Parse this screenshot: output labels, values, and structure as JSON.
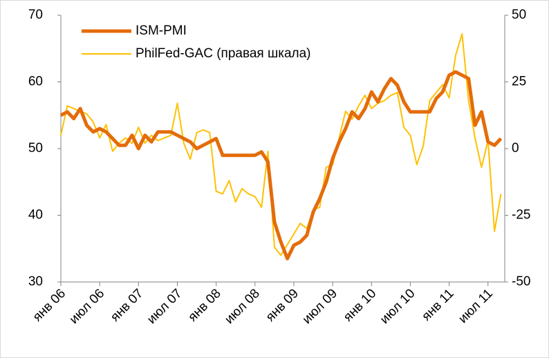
{
  "chart_data": {
    "type": "line",
    "categories": [
      "янв 06",
      null,
      null,
      null,
      null,
      null,
      "июл 06",
      null,
      null,
      null,
      null,
      null,
      "янв 07",
      null,
      null,
      null,
      null,
      null,
      "июл 07",
      null,
      null,
      null,
      null,
      null,
      "янв 08",
      null,
      null,
      null,
      null,
      null,
      "июл 08",
      null,
      null,
      null,
      null,
      null,
      "янв 09",
      null,
      null,
      null,
      null,
      null,
      "июл 09",
      null,
      null,
      null,
      null,
      null,
      "янв 10",
      null,
      null,
      null,
      null,
      null,
      "июл 10",
      null,
      null,
      null,
      null,
      null,
      "янв 11",
      null,
      null,
      null,
      null,
      null,
      "июл 11",
      null,
      null
    ],
    "series": [
      {
        "name": "ISM-PMI",
        "color": "#e46c0a",
        "values": [
          55,
          55.5,
          54.5,
          56,
          53.5,
          52.5,
          53,
          52.5,
          51.5,
          50.5,
          50.5,
          52,
          50,
          52,
          51,
          52.5,
          52.5,
          52.5,
          52,
          51.5,
          51,
          50,
          50.5,
          51,
          51.5,
          49,
          49,
          49,
          49,
          49,
          49,
          49.5,
          48,
          39,
          36,
          33.5,
          35.5,
          36,
          37,
          40.5,
          42.5,
          45,
          48.5,
          51,
          53,
          55.5,
          54.5,
          56,
          58.5,
          57,
          59,
          60.5,
          59.5,
          57,
          55.5,
          55.5,
          55.5,
          55.5,
          57.5,
          58.5,
          61,
          61.5,
          61,
          60.5,
          53.5,
          55.5,
          51,
          50.5,
          51.5
        ]
      },
      {
        "name": "PhilFed-GAC (правая шкала)",
        "color": "#ffc000",
        "axis": "y2",
        "values": [
          5,
          16,
          15,
          14,
          13,
          10,
          4,
          9,
          -1,
          2,
          4,
          2,
          8,
          2,
          5,
          3,
          4,
          5,
          17,
          2,
          -4,
          6,
          7,
          6,
          -16,
          -17,
          -12,
          -20,
          -15,
          -17,
          -18,
          -22,
          -1,
          -37,
          -40,
          -36,
          -32,
          -28,
          -30,
          -23,
          -22,
          -7,
          -6,
          4,
          14,
          11,
          16,
          20,
          15,
          17,
          18,
          20,
          21,
          8,
          5,
          -6,
          1,
          18,
          21,
          24,
          19,
          35,
          43,
          18,
          4,
          -7,
          3,
          -31,
          -17
        ]
      }
    ],
    "ylim": [
      30,
      70
    ],
    "yticks": [
      30,
      40,
      50,
      60,
      70
    ],
    "y2lim": [
      -50,
      50
    ],
    "y2ticks": [
      -50,
      -25,
      0,
      25,
      50
    ],
    "legend": "upper-left"
  }
}
